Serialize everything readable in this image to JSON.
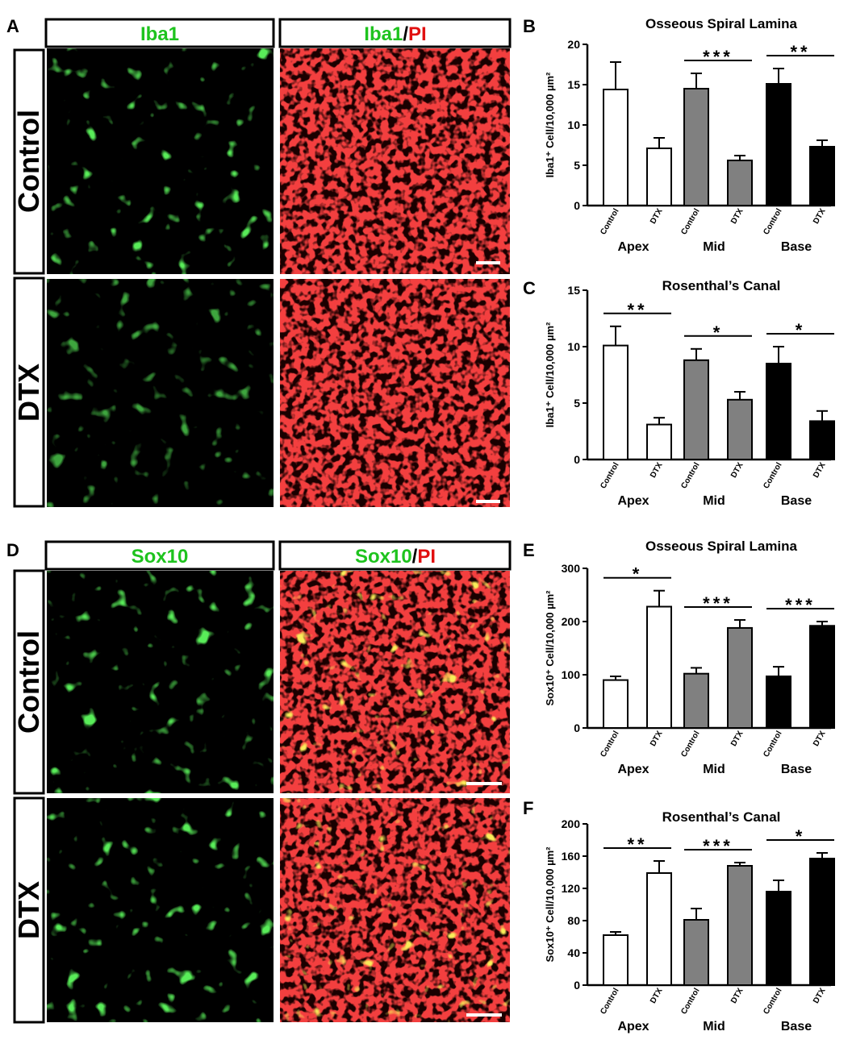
{
  "panels": {
    "A": {
      "label": "A",
      "headers": [
        {
          "parts": [
            {
              "text": "Iba1",
              "color": "#1ec31e"
            }
          ]
        },
        {
          "parts": [
            {
              "text": "Iba1",
              "color": "#1ec31e"
            },
            {
              "text": "/",
              "color": "#000000"
            },
            {
              "text": "PI",
              "color": "#e11010"
            }
          ]
        }
      ],
      "rows": [
        "Control",
        "DTX"
      ]
    },
    "D": {
      "label": "D",
      "headers": [
        {
          "parts": [
            {
              "text": "Sox10",
              "color": "#1ec31e"
            }
          ]
        },
        {
          "parts": [
            {
              "text": "Sox10",
              "color": "#1ec31e"
            },
            {
              "text": "/",
              "color": "#000000"
            },
            {
              "text": "PI",
              "color": "#e11010"
            }
          ]
        }
      ],
      "rows": [
        "Control",
        "DTX"
      ]
    }
  },
  "colors": {
    "green": "#1ec31e",
    "red": "#e11010",
    "control_bar": "#ffffff",
    "mid_bar": "#808080",
    "base_bar": "#000000"
  },
  "chart_data": [
    {
      "panel": "B",
      "type": "bar",
      "title": "Osseous Spiral Lamina",
      "ylabel": "Iba1⁺ Cell/10,000 µm²",
      "ylim": [
        0,
        20
      ],
      "yticks": [
        0,
        5,
        10,
        15,
        20
      ],
      "groups": [
        "Apex",
        "Mid",
        "Base"
      ],
      "bar_labels": [
        "Control",
        "DTX"
      ],
      "values": [
        [
          14.4,
          7.1
        ],
        [
          14.5,
          5.6
        ],
        [
          15.1,
          7.3
        ]
      ],
      "errors": [
        [
          3.4,
          1.3
        ],
        [
          1.9,
          0.6
        ],
        [
          1.9,
          0.8
        ]
      ],
      "significance": [
        "",
        "***",
        "**"
      ]
    },
    {
      "panel": "C",
      "type": "bar",
      "title": "Rosenthal’s Canal",
      "ylabel": "Iba1⁺ Cell/10,000 µm²",
      "ylim": [
        0,
        15
      ],
      "yticks": [
        0,
        5,
        10,
        15
      ],
      "groups": [
        "Apex",
        "Mid",
        "Base"
      ],
      "bar_labels": [
        "Control",
        "DTX"
      ],
      "values": [
        [
          10.1,
          3.1
        ],
        [
          8.8,
          5.3
        ],
        [
          8.5,
          3.4
        ]
      ],
      "errors": [
        [
          1.7,
          0.6
        ],
        [
          1.0,
          0.7
        ],
        [
          1.5,
          0.9
        ]
      ],
      "significance": [
        "**",
        "*",
        "*"
      ]
    },
    {
      "panel": "E",
      "type": "bar",
      "title": "Osseous Spiral Lamina",
      "ylabel": "Sox10⁺ Cell/10,000 µm²",
      "ylim": [
        0,
        300
      ],
      "yticks": [
        0,
        100,
        200,
        300
      ],
      "groups": [
        "Apex",
        "Mid",
        "Base"
      ],
      "bar_labels": [
        "Control",
        "DTX"
      ],
      "values": [
        [
          90,
          228
        ],
        [
          102,
          188
        ],
        [
          97,
          192
        ]
      ],
      "errors": [
        [
          7,
          30
        ],
        [
          11,
          15
        ],
        [
          18,
          8
        ]
      ],
      "significance": [
        "*",
        "***",
        "***"
      ]
    },
    {
      "panel": "F",
      "type": "bar",
      "title": "Rosenthal’s Canal",
      "ylabel": "Sox10⁺ Cell/10,000 µm²",
      "ylim": [
        0,
        200
      ],
      "yticks": [
        0,
        40,
        80,
        120,
        160,
        200
      ],
      "groups": [
        "Apex",
        "Mid",
        "Base"
      ],
      "bar_labels": [
        "Control",
        "DTX"
      ],
      "values": [
        [
          62,
          139
        ],
        [
          81,
          148
        ],
        [
          116,
          157
        ]
      ],
      "errors": [
        [
          4,
          15
        ],
        [
          14,
          4
        ],
        [
          14,
          7
        ]
      ],
      "significance": [
        "**",
        "***",
        "*"
      ]
    }
  ]
}
